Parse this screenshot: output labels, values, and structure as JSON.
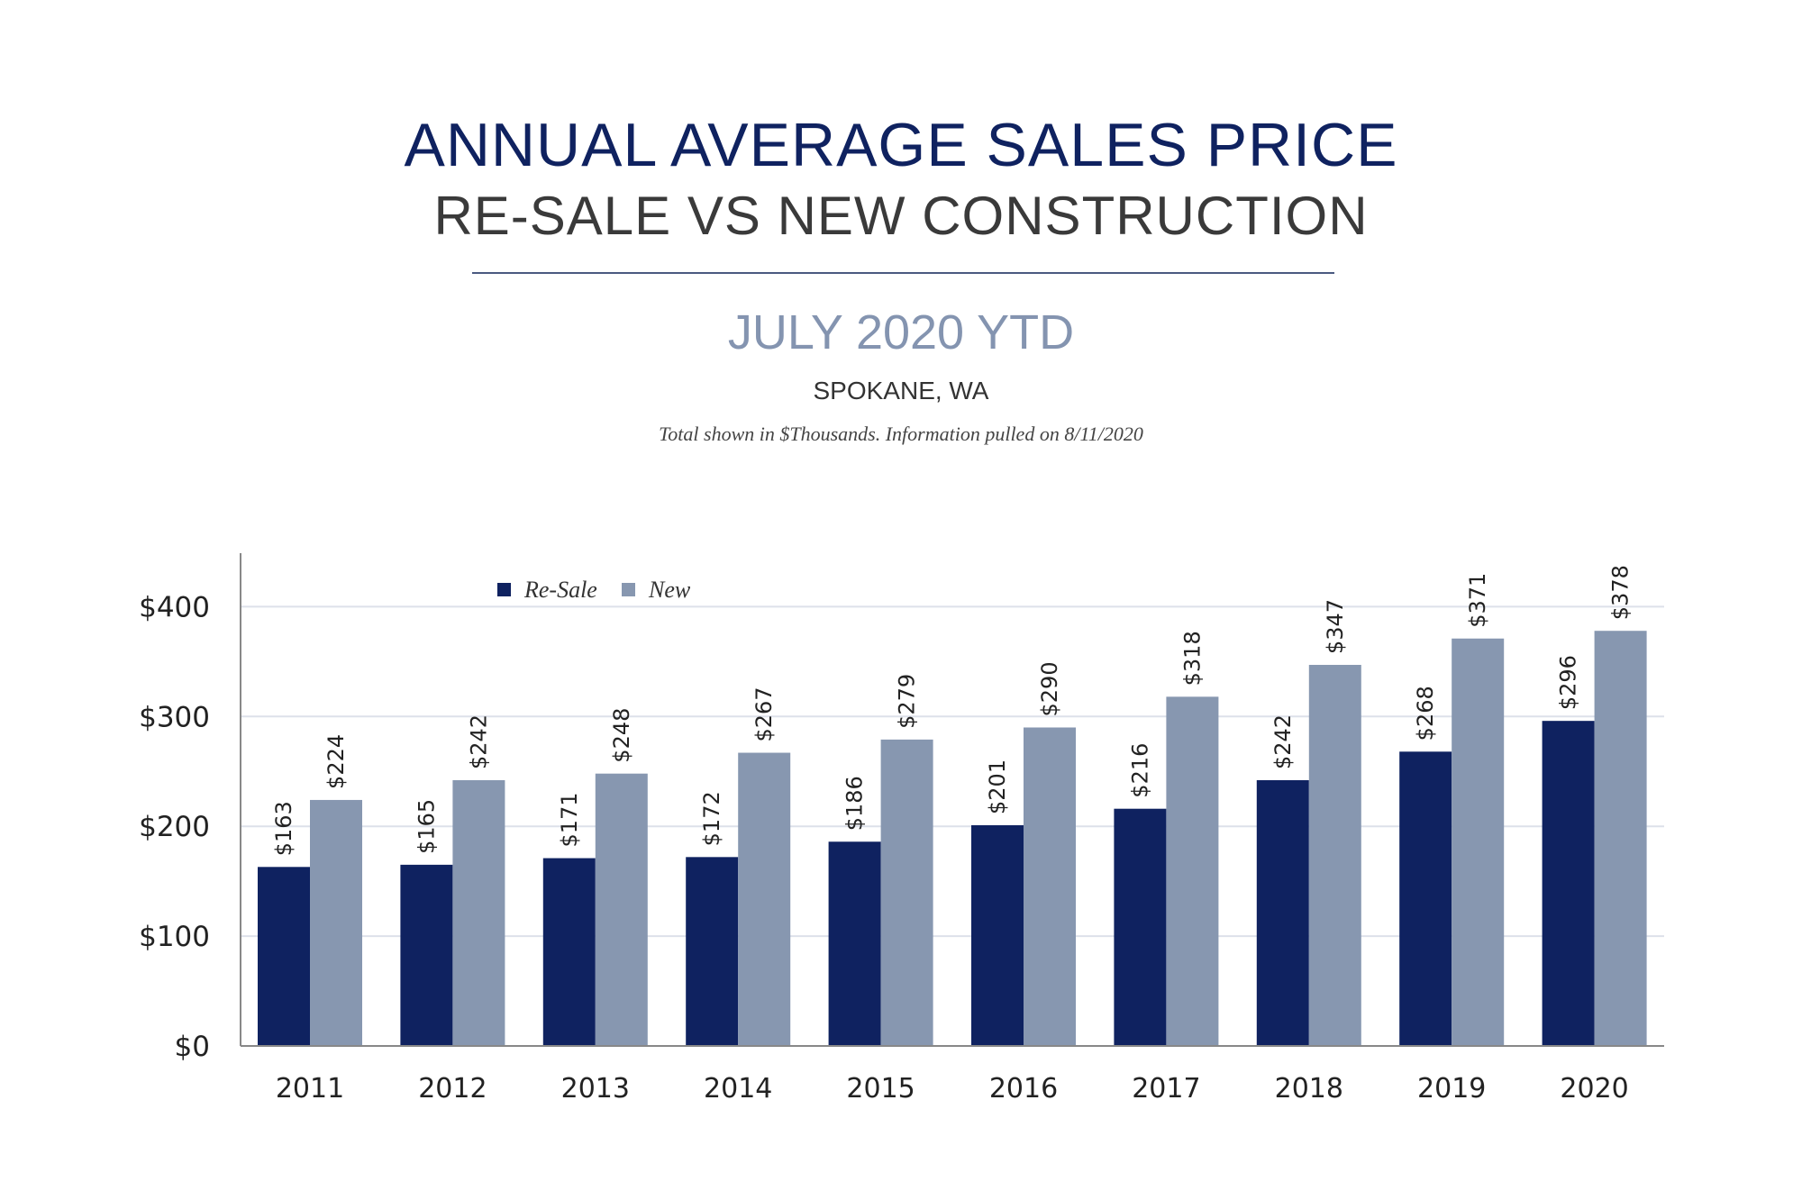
{
  "header": {
    "title": "ANNUAL AVERAGE SALES PRICE",
    "subtitle": "RE-SALE VS NEW CONSTRUCTION",
    "period": "JULY 2020 YTD",
    "location": "SPOKANE, WA",
    "note": "Total shown in $Thousands. Information pulled on 8/11/2020"
  },
  "chart_data": {
    "type": "bar",
    "categories": [
      "2011",
      "2012",
      "2013",
      "2014",
      "2015",
      "2016",
      "2017",
      "2018",
      "2019",
      "2020"
    ],
    "series": [
      {
        "name": "Re-Sale",
        "color": "#0f2260",
        "values": [
          163,
          165,
          171,
          172,
          186,
          201,
          216,
          242,
          268,
          296
        ],
        "labels": [
          "$163",
          "$165",
          "$171",
          "$172",
          "$186",
          "$201",
          "$216",
          "$242",
          "$268",
          "$296"
        ]
      },
      {
        "name": "New",
        "color": "#8797b0",
        "values": [
          224,
          242,
          248,
          267,
          279,
          290,
          318,
          347,
          371,
          378
        ],
        "labels": [
          "$224",
          "$242",
          "$248",
          "$267",
          "$279",
          "$290",
          "$318",
          "$347",
          "$371",
          "$378"
        ]
      }
    ],
    "ylim": [
      0,
      450
    ],
    "yticks": [
      0,
      100,
      200,
      300,
      400
    ],
    "ytick_labels": [
      "$0",
      "$100",
      "$200",
      "$300",
      "$400"
    ],
    "grid": true,
    "legend": "top-left",
    "xlabel": "",
    "ylabel": ""
  }
}
